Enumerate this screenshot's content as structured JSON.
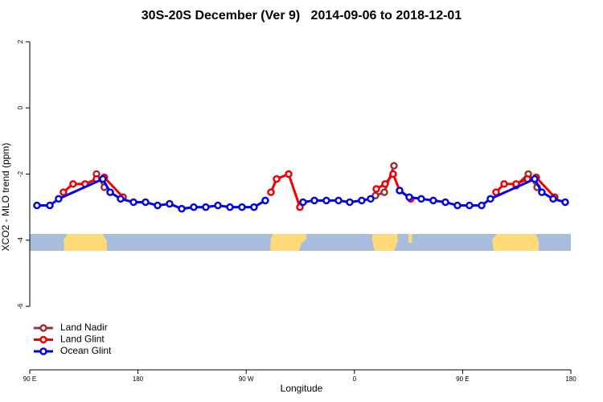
{
  "chart_data": {
    "type": "line",
    "title": "30S-20S December (Ver 9)   2014-09-06 to 2018-12-01",
    "xlabel": "Longitude",
    "ylabel": "XCO2 - MLO trend (ppm)",
    "xlim": [
      90,
      540
    ],
    "ylim": [
      -7.92,
      2.29
    ],
    "xticks": [
      {
        "value": 90,
        "label": "90 E"
      },
      {
        "value": 180,
        "label": "180"
      },
      {
        "value": 270,
        "label": "90 W"
      },
      {
        "value": 360,
        "label": "0"
      },
      {
        "value": 450,
        "label": "90 E"
      },
      {
        "value": 540,
        "label": "180"
      }
    ],
    "yticks": [
      2,
      0,
      -2,
      -4,
      -6
    ],
    "legend": "bottom-left",
    "series": [
      {
        "name": "Land Nadir",
        "color": "#993333",
        "x": [
          145.5,
          152,
          null,
          377.5,
          384.9,
          392.9,
          null,
          494.5,
          504.6,
          511.9
        ],
        "values": [
          -2.0,
          -2.4,
          null,
          -2.65,
          -2.55,
          -1.75,
          null,
          -2.35,
          -2.0,
          -2.4
        ]
      },
      {
        "name": "Land Glint",
        "color": "#ee0000",
        "x": [
          118,
          126,
          136,
          145.5,
          152,
          167.6,
          null,
          290.6,
          295.3,
          305.3,
          314.7,
          null,
          378.2,
          385.5,
          392.2,
          397.6,
          406.9,
          null,
          477.8,
          484.5,
          494.5,
          503.9,
          511.2,
          526.6
        ],
        "values": [
          -2.55,
          -2.3,
          -2.3,
          -2.15,
          -2.1,
          -2.7,
          null,
          -2.55,
          -2.15,
          -2.0,
          -3.0,
          null,
          -2.45,
          -2.3,
          -2.0,
          -2.5,
          -2.75,
          null,
          -2.55,
          -2.3,
          -2.3,
          -2.15,
          -2.1,
          -2.7
        ]
      },
      {
        "name": "Ocean Glint",
        "color": "#0000ee",
        "x": [
          96,
          106.7,
          114,
          150.8,
          156.9,
          165.6,
          176.3,
          186.3,
          196.3,
          206.3,
          216.4,
          226.4,
          236.4,
          246.5,
          256.5,
          266.5,
          276.5,
          285.9,
          null,
          317.3,
          326.7,
          336.7,
          346.8,
          356.1,
          366.1,
          373.5,
          null,
          397.6,
          405.6,
          415.6,
          425.6,
          435.7,
          445.7,
          455.7,
          465.8,
          473.1,
          509.9,
          515.9,
          525.3,
          535.3
        ],
        "values": [
          -2.95,
          -2.95,
          -2.75,
          -2.15,
          -2.55,
          -2.75,
          -2.85,
          -2.85,
          -2.95,
          -2.9,
          -3.05,
          -3.0,
          -3.0,
          -2.95,
          -3.0,
          -3.0,
          -3.0,
          -2.8,
          null,
          -2.85,
          -2.8,
          -2.8,
          -2.8,
          -2.85,
          -2.8,
          -2.75,
          null,
          -2.5,
          -2.7,
          -2.75,
          -2.8,
          -2.85,
          -2.95,
          -2.95,
          -2.95,
          -2.75,
          -2.15,
          -2.55,
          -2.75,
          -2.85
        ]
      }
    ]
  }
}
